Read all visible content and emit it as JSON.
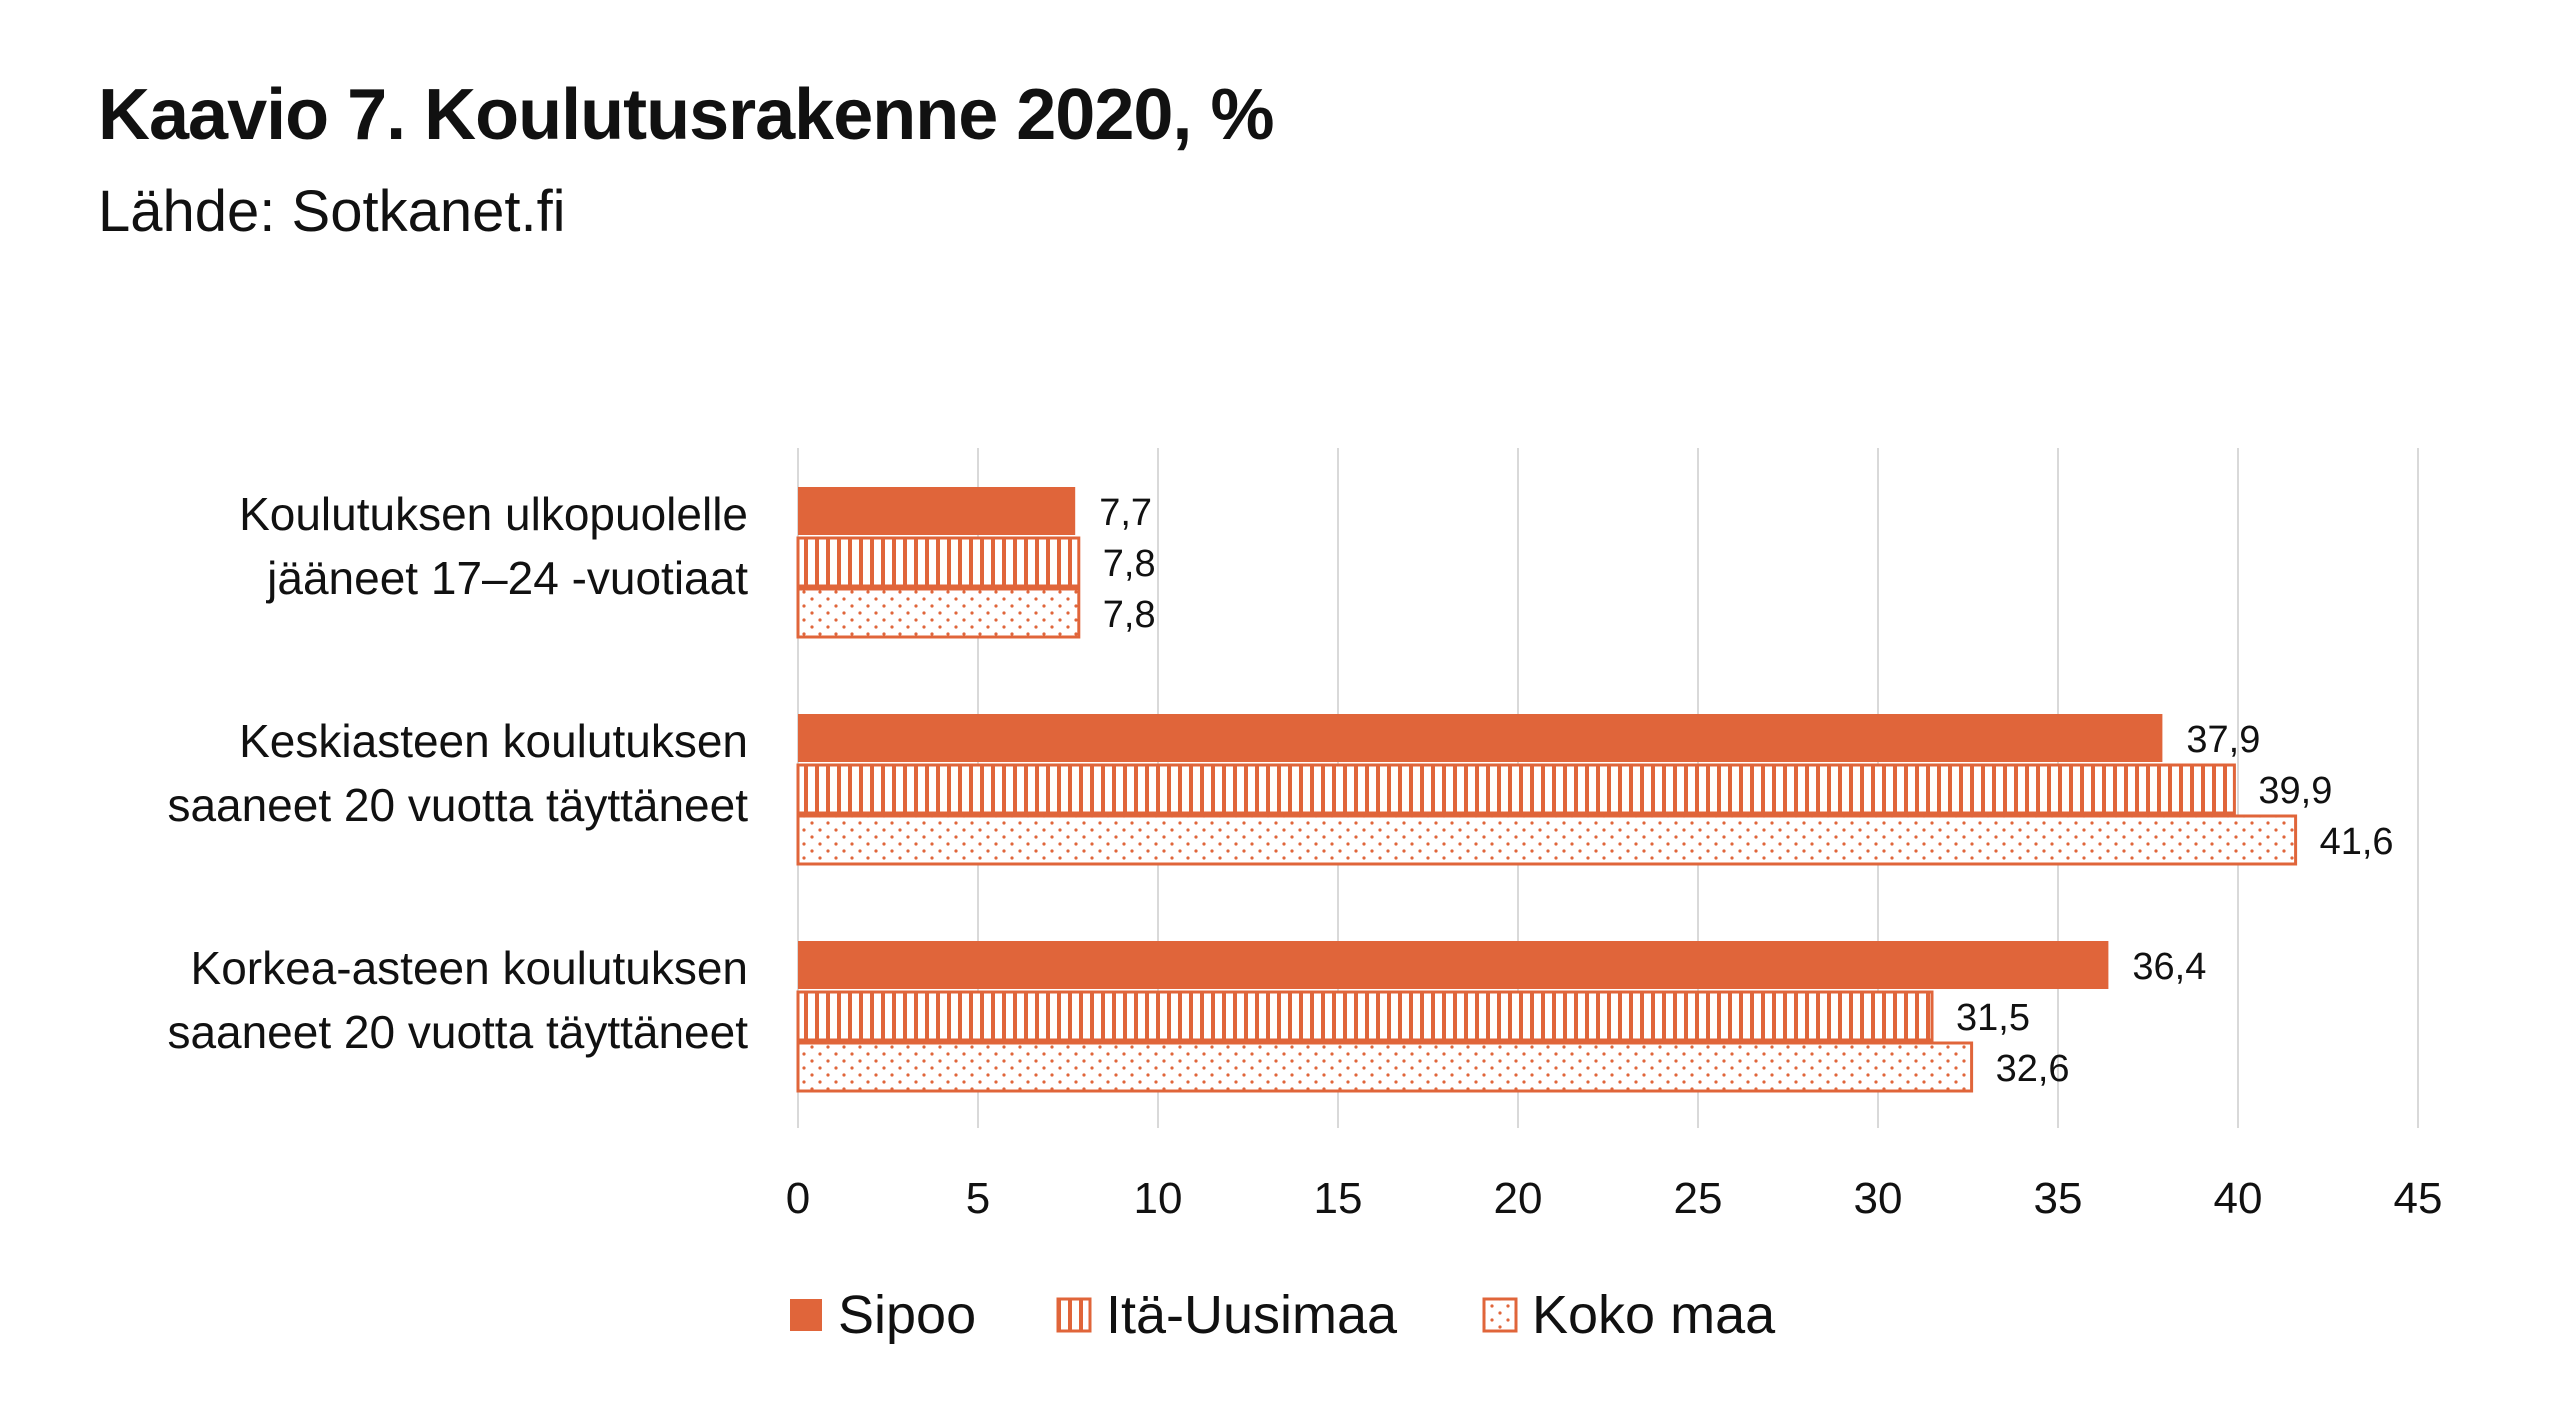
{
  "header": {
    "title": "Kaavio 7. Koulutusrakenne 2020, %",
    "subtitle": "Lähde: Sotkanet.fi"
  },
  "chart_data": {
    "type": "bar",
    "orientation": "horizontal",
    "categories": [
      [
        "Koulutuksen ulkopuolelle",
        "jääneet 17–24 -vuotiaat"
      ],
      [
        "Keskiasteen koulutuksen",
        "saaneet 20 vuotta täyttäneet"
      ],
      [
        "Korkea-asteen koulutuksen",
        "saaneet 20 vuotta täyttäneet"
      ]
    ],
    "series": [
      {
        "name": "Sipoo",
        "values": [
          7.7,
          37.9,
          36.4
        ],
        "value_labels": [
          "7,7",
          "37,9",
          "36,4"
        ],
        "pattern": "solid"
      },
      {
        "name": "Itä-Uusimaa",
        "values": [
          7.8,
          39.9,
          31.5
        ],
        "value_labels": [
          "7,8",
          "39,9",
          "31,5"
        ],
        "pattern": "vertical-stripes"
      },
      {
        "name": "Koko maa",
        "values": [
          7.8,
          41.6,
          32.6
        ],
        "value_labels": [
          "7,8",
          "41,6",
          "32,6"
        ],
        "pattern": "dots"
      }
    ],
    "xlim": [
      0,
      45
    ],
    "xticks": [
      0,
      5,
      10,
      15,
      20,
      25,
      30,
      35,
      40,
      45
    ],
    "grid": "vertical",
    "legend_position": "bottom",
    "colors": {
      "accent": "#E0653A",
      "grid": "#D9D9D9",
      "text": "#111111"
    }
  }
}
